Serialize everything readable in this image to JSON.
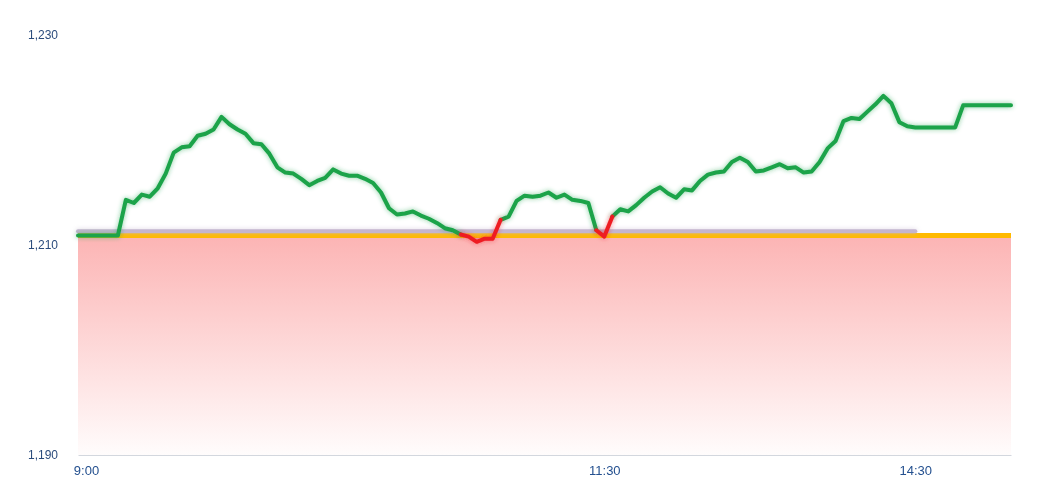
{
  "chart_data": {
    "type": "line",
    "categories": [
      null,
      "9:00",
      null,
      null,
      null,
      null,
      null,
      null,
      null,
      null,
      null,
      null,
      null,
      null,
      null,
      null,
      null,
      null,
      null,
      null,
      null,
      null,
      null,
      null,
      null,
      null,
      null,
      null,
      null,
      null,
      null,
      null,
      null,
      null,
      null,
      null,
      null,
      null,
      null,
      null,
      null,
      null,
      null,
      null,
      null,
      null,
      null,
      null,
      null,
      null,
      null,
      null,
      null,
      null,
      null,
      null,
      null,
      null,
      null,
      null,
      null,
      null,
      null,
      null,
      null,
      null,
      "11:30",
      null,
      null,
      null,
      null,
      null,
      null,
      null,
      null,
      null,
      null,
      null,
      null,
      null,
      null,
      null,
      null,
      null,
      null,
      null,
      null,
      null,
      null,
      null,
      null,
      null,
      null,
      null,
      null,
      null,
      null,
      null,
      null,
      null,
      null,
      null,
      null,
      null,
      null,
      "14:30",
      null,
      null,
      null,
      null,
      null,
      null,
      null,
      null,
      null,
      null,
      null,
      null
    ],
    "ylim": [
      1190,
      1230
    ],
    "yticks": [
      {
        "value": 1190,
        "label": "1,190"
      },
      {
        "value": 1210,
        "label": "1,210"
      },
      {
        "value": 1230,
        "label": "1,230"
      }
    ],
    "series": [
      {
        "color": "#c4b5cf",
        "values": [
          1211.3,
          1211.3,
          1211.3,
          1211.3,
          1211.3,
          1211.3,
          1211.3,
          1211.3,
          1211.3,
          1211.3,
          1211.3,
          1211.3,
          1211.3,
          1211.3,
          1211.3,
          1211.3,
          1211.3,
          1211.3,
          1211.3,
          1211.3,
          1211.3,
          1211.3,
          1211.3,
          1211.3,
          1211.3,
          1211.3,
          1211.3,
          1211.3,
          1211.3,
          1211.3,
          1211.3,
          1211.3,
          1211.3,
          1211.3,
          1211.3,
          1211.3,
          1211.3,
          1211.3,
          1211.3,
          1211.3,
          1211.3,
          1211.3,
          1211.3,
          1211.3,
          1211.3,
          1211.3,
          1211.3,
          1211.3,
          1211.3,
          1211.3,
          1211.3,
          1211.3,
          1211.3,
          1211.3,
          1211.3,
          1211.3,
          1211.3,
          1211.3,
          1211.3,
          1211.3,
          1211.3,
          1211.3,
          1211.3,
          1211.3,
          1211.3,
          1211.3,
          1211.3,
          1211.3,
          1211.3,
          1211.3,
          1211.3,
          1211.3,
          1211.3,
          1211.3,
          1211.3,
          1211.3,
          1211.3,
          1211.3,
          1211.3,
          1211.3,
          1211.3,
          1211.3,
          1211.3,
          1211.3,
          1211.3,
          1211.3,
          1211.3,
          1211.3,
          1211.3,
          1211.3,
          1211.3,
          1211.3,
          1211.3,
          1211.3,
          1211.3,
          1211.3,
          1211.3,
          1211.3,
          1211.3,
          1211.3,
          1211.3,
          1211.3,
          1211.3,
          1211.3,
          1211.3,
          1211.3,
          null,
          null,
          null,
          null,
          null,
          null,
          null,
          null,
          null,
          null,
          null,
          null
        ]
      },
      {
        "color": "#1aa34a",
        "values": [
          1210.9,
          1210.9,
          1210.9,
          1210.9,
          1210.9,
          1210.9,
          1214.3,
          1214.0,
          1214.8,
          1214.6,
          1215.4,
          1216.8,
          1218.8,
          1219.3,
          1219.4,
          1220.4,
          1220.6,
          1221.0,
          1222.2,
          1221.5,
          1221.0,
          1220.6,
          1219.7,
          1219.6,
          1218.7,
          1217.4,
          1216.9,
          1216.8,
          1216.3,
          1215.7,
          1216.1,
          1216.4,
          1217.2,
          1216.8,
          1216.6,
          1216.6,
          1216.3,
          1215.9,
          1215.0,
          1213.5,
          1212.9,
          1213.0,
          1213.2,
          1212.8,
          1212.5,
          1212.1,
          1211.6,
          1211.4,
          1211.0,
          null,
          null,
          null,
          null,
          1212.4,
          1212.7,
          1214.2,
          1214.7,
          1214.6,
          1214.7,
          1215.0,
          1214.5,
          1214.8,
          1214.3,
          1214.2,
          1214.0,
          1211.4,
          null,
          1212.7,
          1213.4,
          1213.2,
          1213.8,
          1214.5,
          1215.1,
          1215.5,
          1214.9,
          1214.5,
          1215.3,
          1215.2,
          1216.1,
          1216.7,
          1216.9,
          1217.0,
          1217.9,
          1218.3,
          1217.9,
          1217.0,
          1217.1,
          1217.4,
          1217.7,
          1217.3,
          1217.4,
          1216.9,
          1217.0,
          1217.9,
          1219.2,
          1219.9,
          1221.8,
          1222.1,
          1222.0,
          1222.7,
          1223.4,
          1224.2,
          1223.5,
          1221.7,
          1221.3,
          1221.2,
          1221.2,
          1221.2,
          1221.2,
          1221.2,
          1221.2,
          1223.3,
          1223.3,
          1223.3,
          1223.3,
          1223.3,
          1223.3,
          1223.3
        ]
      },
      {
        "color": "#ee1c24",
        "values": [
          null,
          null,
          null,
          null,
          null,
          null,
          null,
          null,
          null,
          null,
          null,
          null,
          null,
          null,
          null,
          null,
          null,
          null,
          null,
          null,
          null,
          null,
          null,
          null,
          null,
          null,
          null,
          null,
          null,
          null,
          null,
          null,
          null,
          null,
          null,
          null,
          null,
          null,
          null,
          null,
          null,
          null,
          null,
          null,
          null,
          null,
          null,
          null,
          1211.0,
          1210.8,
          1210.3,
          1210.6,
          1210.6,
          1212.4,
          null,
          null,
          null,
          null,
          null,
          null,
          null,
          null,
          null,
          null,
          null,
          1211.4,
          1210.8,
          1212.7,
          null,
          null,
          null,
          null,
          null,
          null,
          null,
          null,
          null,
          null,
          null,
          null,
          null,
          null,
          null,
          null,
          null,
          null,
          null,
          null,
          null,
          null,
          null,
          null,
          null,
          null,
          null,
          null,
          null,
          null,
          null,
          null,
          null,
          null,
          null,
          null,
          null,
          null,
          null,
          null,
          null,
          null,
          null,
          null,
          null,
          null,
          null,
          null,
          null,
          null
        ]
      }
    ],
    "ref_lines": [
      {
        "axis": "y",
        "value": 1210.9,
        "color": "#ffba00"
      }
    ],
    "bands": [
      {
        "axis": "y",
        "from": 1190,
        "to": 1210.9,
        "color": "#fcb4b4"
      }
    ]
  }
}
